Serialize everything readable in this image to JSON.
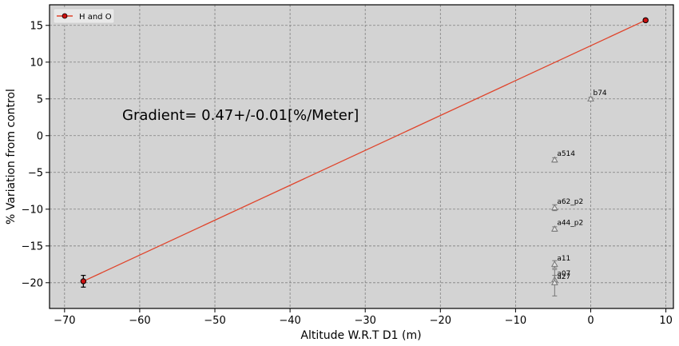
{
  "chart_data": {
    "type": "scatter",
    "xlabel": "Altitude W.R.T D1 (m)",
    "ylabel": "% Variation from control",
    "xlim": [
      -72,
      11
    ],
    "ylim": [
      -23.5,
      17.8
    ],
    "xticks": [
      -70,
      -60,
      -50,
      -40,
      -30,
      -20,
      -10,
      0,
      10
    ],
    "yticks": [
      -20,
      -15,
      -10,
      -5,
      0,
      5,
      10,
      15
    ],
    "grid": true,
    "background": "#d3d3d3",
    "annotation": "Gradient= 0.47+/-0.01[%/Meter]",
    "legend": {
      "position": "top-left",
      "entries": [
        {
          "name": "H and O",
          "color": "#e0442b",
          "marker": "circle"
        }
      ]
    },
    "series": [
      {
        "name": "H and O",
        "color": "#e0442b",
        "marker_fill": "#cc1010",
        "points": [
          {
            "x": -67.5,
            "y": -19.8,
            "err": 0.8
          },
          {
            "x": 7.3,
            "y": 15.7,
            "err": 0.2
          }
        ],
        "fit_line": [
          {
            "x": -67.5,
            "y": -19.8
          },
          {
            "x": 7.3,
            "y": 15.7
          }
        ]
      },
      {
        "name": "",
        "color": "#777777",
        "marker": "triangle",
        "points": [
          {
            "x": 0,
            "y": 5.0,
            "label": "b74",
            "err": 0.2
          },
          {
            "x": -4.8,
            "y": -3.3,
            "label": "a514",
            "err": 0.3
          },
          {
            "x": -4.8,
            "y": -9.8,
            "label": "a62_p2",
            "err": 0.4
          },
          {
            "x": -4.8,
            "y": -12.7,
            "label": "a44_p2",
            "err": 0.3
          },
          {
            "x": -4.8,
            "y": -17.5,
            "label": "a11",
            "err": 0.5
          },
          {
            "x": -4.8,
            "y": -19.6,
            "label": "a07",
            "err": 0.6
          },
          {
            "x": -4.8,
            "y": -20.0,
            "label": "a27",
            "err": 1.8
          }
        ]
      }
    ]
  }
}
